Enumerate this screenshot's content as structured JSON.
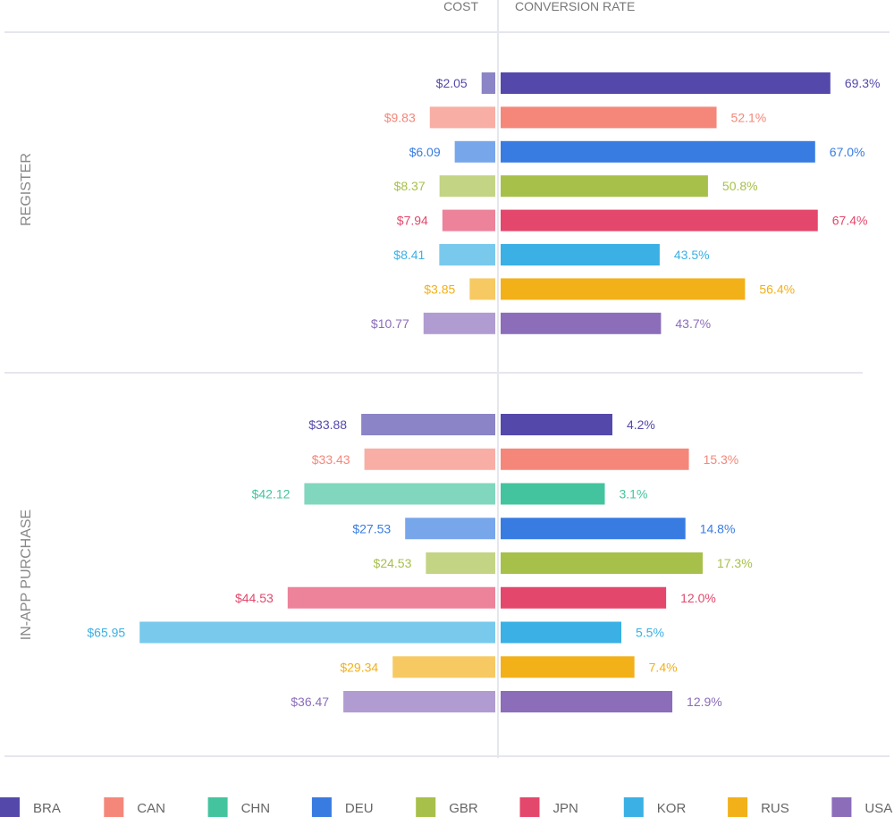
{
  "chart_data": {
    "type": "bar",
    "layout": "mirrored-horizontal-bar",
    "headers": {
      "left": "COST",
      "right": "CONVERSION RATE"
    },
    "countries": [
      "BRA",
      "CAN",
      "CHN",
      "DEU",
      "GBR",
      "JPN",
      "KOR",
      "RUS",
      "USA"
    ],
    "colors": {
      "BRA": "#5449ab",
      "CAN": "#f4877a",
      "CHN": "#44c49e",
      "DEU": "#387ce2",
      "GBR": "#a7c04a",
      "JPN": "#e4476c",
      "KOR": "#3ab0e5",
      "RUS": "#f2b019",
      "USA": "#8b6dba"
    },
    "legend": {
      "placement": "bottom",
      "entries": [
        "BRA",
        "CAN",
        "CHN",
        "DEU",
        "GBR",
        "JPN",
        "KOR",
        "RUS",
        "USA"
      ]
    },
    "groups": [
      {
        "name": "REGISTER",
        "rows": [
          {
            "country": "BRA",
            "cost": 2.05,
            "cost_label": "$2.05",
            "rate": 69.3,
            "rate_label": "69.3%"
          },
          {
            "country": "CAN",
            "cost": 9.83,
            "cost_label": "$9.83",
            "rate": 52.1,
            "rate_label": "52.1%"
          },
          {
            "country": "DEU",
            "cost": 6.09,
            "cost_label": "$6.09",
            "rate": 67.0,
            "rate_label": "67.0%"
          },
          {
            "country": "GBR",
            "cost": 8.37,
            "cost_label": "$8.37",
            "rate": 50.8,
            "rate_label": "50.8%"
          },
          {
            "country": "JPN",
            "cost": 7.94,
            "cost_label": "$7.94",
            "rate": 67.4,
            "rate_label": "67.4%"
          },
          {
            "country": "KOR",
            "cost": 8.41,
            "cost_label": "$8.41",
            "rate": 43.5,
            "rate_label": "43.5%"
          },
          {
            "country": "RUS",
            "cost": 3.85,
            "cost_label": "$3.85",
            "rate": 56.4,
            "rate_label": "56.4%"
          },
          {
            "country": "USA",
            "cost": 10.77,
            "cost_label": "$10.77",
            "rate": 43.7,
            "rate_label": "43.7%"
          }
        ]
      },
      {
        "name": "IN-APP PURCHASE",
        "rows": [
          {
            "country": "BRA",
            "cost": 33.88,
            "cost_label": "$33.88",
            "rate": 4.2,
            "rate_label": "4.2%"
          },
          {
            "country": "CAN",
            "cost": 33.43,
            "cost_label": "$33.43",
            "rate": 15.3,
            "rate_label": "15.3%"
          },
          {
            "country": "CHN",
            "cost": 42.12,
            "cost_label": "$42.12",
            "rate": 3.1,
            "rate_label": "3.1%"
          },
          {
            "country": "DEU",
            "cost": 27.53,
            "cost_label": "$27.53",
            "rate": 14.8,
            "rate_label": "14.8%"
          },
          {
            "country": "GBR",
            "cost": 24.53,
            "cost_label": "$24.53",
            "rate": 17.3,
            "rate_label": "17.3%"
          },
          {
            "country": "JPN",
            "cost": 44.53,
            "cost_label": "$44.53",
            "rate": 12.0,
            "rate_label": "12.0%"
          },
          {
            "country": "KOR",
            "cost": 65.95,
            "cost_label": "$65.95",
            "rate": 5.5,
            "rate_label": "5.5%"
          },
          {
            "country": "RUS",
            "cost": 29.34,
            "cost_label": "$29.34",
            "rate": 7.4,
            "rate_label": "7.4%"
          },
          {
            "country": "USA",
            "cost": 36.47,
            "cost_label": "$36.47",
            "rate": 12.9,
            "rate_label": "12.9%"
          }
        ]
      }
    ]
  }
}
